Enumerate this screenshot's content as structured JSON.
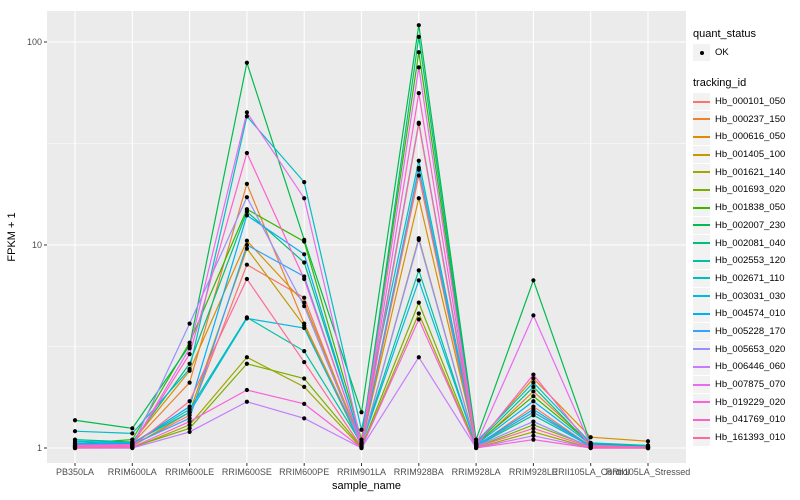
{
  "figure": {
    "background": "#FFFFFF",
    "panel_bg": "#EBEBEB",
    "grid_color": "#FFFFFF",
    "tick_label_color": "#4D4D4D",
    "axis_title_color": "#000000",
    "point_color": "#000000",
    "legend_key_bg": "#F2F2F2"
  },
  "legend": {
    "quant_status": {
      "title": "quant_status",
      "items": [
        {
          "label": "OK",
          "marker": "point-icon",
          "color": "#000000"
        }
      ]
    },
    "tracking": {
      "title": "tracking_id"
    }
  },
  "chart_data": {
    "type": "line",
    "title": "",
    "xlabel": "sample_name",
    "ylabel": "FPKM + 1",
    "y_scale": "log10",
    "y_major_ticks": [
      1,
      10,
      100
    ],
    "y_minor_ticks": [
      3.1623,
      31.623
    ],
    "ylim": [
      0.84,
      142
    ],
    "grid": true,
    "legend_position": "right",
    "point_shape": "filled-circle",
    "categories": [
      "PB350LA",
      "RRIM600LA",
      "RRIM600LE",
      "RRIM600SE",
      "RRIM600PE",
      "RRIM901LA",
      "RRIM928BA",
      "RRIM928LA",
      "RRIM928LE",
      "RRII105LA_Control",
      "RRII105LA_Stressed"
    ],
    "series": [
      {
        "name": "Hb_000101_050",
        "color": "#F8766D",
        "values": [
          1.02,
          1.03,
          1.45,
          8.0,
          5.5,
          1.02,
          22.0,
          1.02,
          1.6,
          1.02,
          1.0
        ]
      },
      {
        "name": "Hb_000237_150",
        "color": "#EA8331",
        "values": [
          1.03,
          1.05,
          2.1,
          20.0,
          4.1,
          1.05,
          23.5,
          1.03,
          1.9,
          1.05,
          1.02
        ]
      },
      {
        "name": "Hb_000616_050",
        "color": "#D89000",
        "values": [
          1.02,
          1.07,
          2.4,
          10.5,
          5.2,
          1.05,
          17.0,
          1.05,
          2.2,
          1.13,
          1.08
        ]
      },
      {
        "name": "Hb_001405_100",
        "color": "#C09B00",
        "values": [
          1.0,
          1.02,
          1.5,
          9.6,
          4.0,
          1.02,
          10.8,
          1.02,
          1.5,
          1.03,
          1.0
        ]
      },
      {
        "name": "Hb_001621_140",
        "color": "#A3A500",
        "values": [
          1.0,
          1.0,
          1.3,
          2.8,
          2.0,
          1.0,
          4.6,
          1.0,
          1.2,
          1.0,
          1.0
        ]
      },
      {
        "name": "Hb_001693_020",
        "color": "#7CAE00",
        "values": [
          1.0,
          1.01,
          1.25,
          2.6,
          2.2,
          1.01,
          5.2,
          1.01,
          1.3,
          1.02,
          1.0
        ]
      },
      {
        "name": "Hb_001838_050",
        "color": "#39B600",
        "values": [
          1.05,
          1.1,
          3.3,
          15.0,
          10.4,
          1.1,
          89.0,
          1.05,
          1.8,
          1.05,
          1.02
        ]
      },
      {
        "name": "Hb_002007_230",
        "color": "#00BB4E",
        "values": [
          1.37,
          1.25,
          3.2,
          79.0,
          10.6,
          1.5,
          121.0,
          1.1,
          6.7,
          1.05,
          1.02
        ]
      },
      {
        "name": "Hb_002081_040",
        "color": "#00BF7D",
        "values": [
          1.1,
          1.07,
          2.6,
          14.6,
          8.2,
          1.07,
          106.0,
          1.05,
          2.0,
          1.03,
          1.0
        ]
      },
      {
        "name": "Hb_002553_120",
        "color": "#00C1A3",
        "values": [
          1.05,
          1.05,
          1.55,
          4.4,
          3.0,
          1.05,
          7.5,
          1.02,
          1.45,
          1.02,
          1.0
        ]
      },
      {
        "name": "Hb_002671_110",
        "color": "#00BFC4",
        "values": [
          1.21,
          1.18,
          2.45,
          43.0,
          20.4,
          1.23,
          26.0,
          1.07,
          2.1,
          1.06,
          1.03
        ]
      },
      {
        "name": "Hb_003031_030",
        "color": "#00BADE",
        "values": [
          1.08,
          1.06,
          1.5,
          4.35,
          3.9,
          1.04,
          6.7,
          1.03,
          1.55,
          1.02,
          1.0
        ]
      },
      {
        "name": "Hb_004574_010",
        "color": "#00B0F6",
        "values": [
          1.06,
          1.05,
          1.6,
          14.0,
          9.0,
          1.05,
          40.0,
          1.04,
          1.7,
          1.04,
          1.01
        ]
      },
      {
        "name": "Hb_005228_170",
        "color": "#35A2FF",
        "values": [
          1.04,
          1.04,
          1.4,
          10.0,
          7.0,
          1.03,
          24.0,
          1.03,
          1.5,
          1.02,
          1.0
        ]
      },
      {
        "name": "Hb_005653_020",
        "color": "#9590FF",
        "values": [
          1.03,
          1.02,
          4.1,
          17.2,
          5.0,
          1.02,
          10.6,
          1.02,
          1.35,
          1.01,
          1.0
        ]
      },
      {
        "name": "Hb_006446_060",
        "color": "#C77CFF",
        "values": [
          1.0,
          1.0,
          1.2,
          1.69,
          1.4,
          1.0,
          2.8,
          1.0,
          1.15,
          1.0,
          1.0
        ]
      },
      {
        "name": "Hb_007875_070",
        "color": "#E76BF3",
        "values": [
          1.02,
          1.03,
          3.1,
          45.0,
          17.0,
          1.05,
          75.0,
          1.04,
          4.5,
          1.03,
          1.01
        ]
      },
      {
        "name": "Hb_019229_020",
        "color": "#FA62DB",
        "values": [
          1.0,
          1.01,
          1.35,
          1.93,
          1.65,
          1.0,
          4.3,
          1.0,
          1.1,
          1.0,
          1.0
        ]
      },
      {
        "name": "Hb_041769_010",
        "color": "#FF61CC",
        "values": [
          1.03,
          1.04,
          2.9,
          28.4,
          6.8,
          1.04,
          56.0,
          1.03,
          2.3,
          1.02,
          1.0
        ]
      },
      {
        "name": "Hb_161393_010",
        "color": "#FF6A98",
        "values": [
          1.01,
          1.02,
          1.7,
          6.8,
          2.65,
          1.01,
          39.5,
          1.01,
          1.25,
          1.01,
          1.0
        ]
      }
    ]
  }
}
